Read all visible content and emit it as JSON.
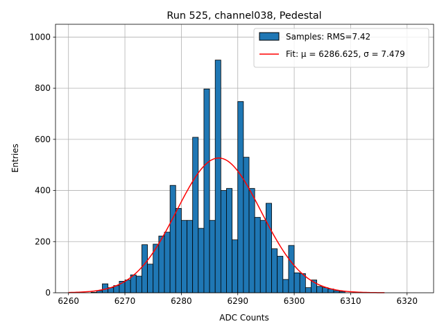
{
  "chart_data": {
    "type": "bar",
    "title": "Run 525, channel038, Pedestal",
    "xlabel": "ADC Counts",
    "ylabel": "Entries",
    "xlim": [
      6257.7,
      6324.7
    ],
    "ylim": [
      0,
      1050
    ],
    "xticks": [
      6260,
      6270,
      6280,
      6290,
      6300,
      6310,
      6320
    ],
    "yticks": [
      0,
      200,
      400,
      600,
      800,
      1000
    ],
    "grid": true,
    "legend_position": "top-right",
    "bin_width": 1,
    "histogram": {
      "name": "Samples: RMS=7.42",
      "color": "#1f77b4",
      "edgecolor": "#000000",
      "bins": [
        [
          6264,
          2
        ],
        [
          6265,
          8
        ],
        [
          6266,
          35
        ],
        [
          6267,
          20
        ],
        [
          6268,
          28
        ],
        [
          6269,
          45
        ],
        [
          6270,
          50
        ],
        [
          6271,
          70
        ],
        [
          6272,
          65
        ],
        [
          6273,
          188
        ],
        [
          6274,
          112
        ],
        [
          6275,
          190
        ],
        [
          6276,
          222
        ],
        [
          6277,
          237
        ],
        [
          6278,
          420
        ],
        [
          6279,
          330
        ],
        [
          6280,
          283
        ],
        [
          6281,
          283
        ],
        [
          6282,
          608
        ],
        [
          6283,
          252
        ],
        [
          6284,
          797
        ],
        [
          6285,
          283
        ],
        [
          6286,
          910
        ],
        [
          6287,
          400
        ],
        [
          6288,
          408
        ],
        [
          6289,
          207
        ],
        [
          6290,
          748
        ],
        [
          6291,
          530
        ],
        [
          6292,
          408
        ],
        [
          6293,
          295
        ],
        [
          6294,
          283
        ],
        [
          6295,
          350
        ],
        [
          6296,
          172
        ],
        [
          6297,
          143
        ],
        [
          6298,
          52
        ],
        [
          6299,
          185
        ],
        [
          6300,
          78
        ],
        [
          6301,
          75
        ],
        [
          6302,
          20
        ],
        [
          6303,
          50
        ],
        [
          6304,
          25
        ],
        [
          6305,
          20
        ],
        [
          6306,
          15
        ],
        [
          6307,
          8
        ],
        [
          6308,
          5
        ]
      ]
    },
    "fit": {
      "name": "Fit: μ = 6286.625, σ = 7.479",
      "color": "#ff0000",
      "mu": 6286.625,
      "sigma": 7.479,
      "amplitude": 527,
      "x_range": [
        6260,
        6316
      ]
    }
  }
}
